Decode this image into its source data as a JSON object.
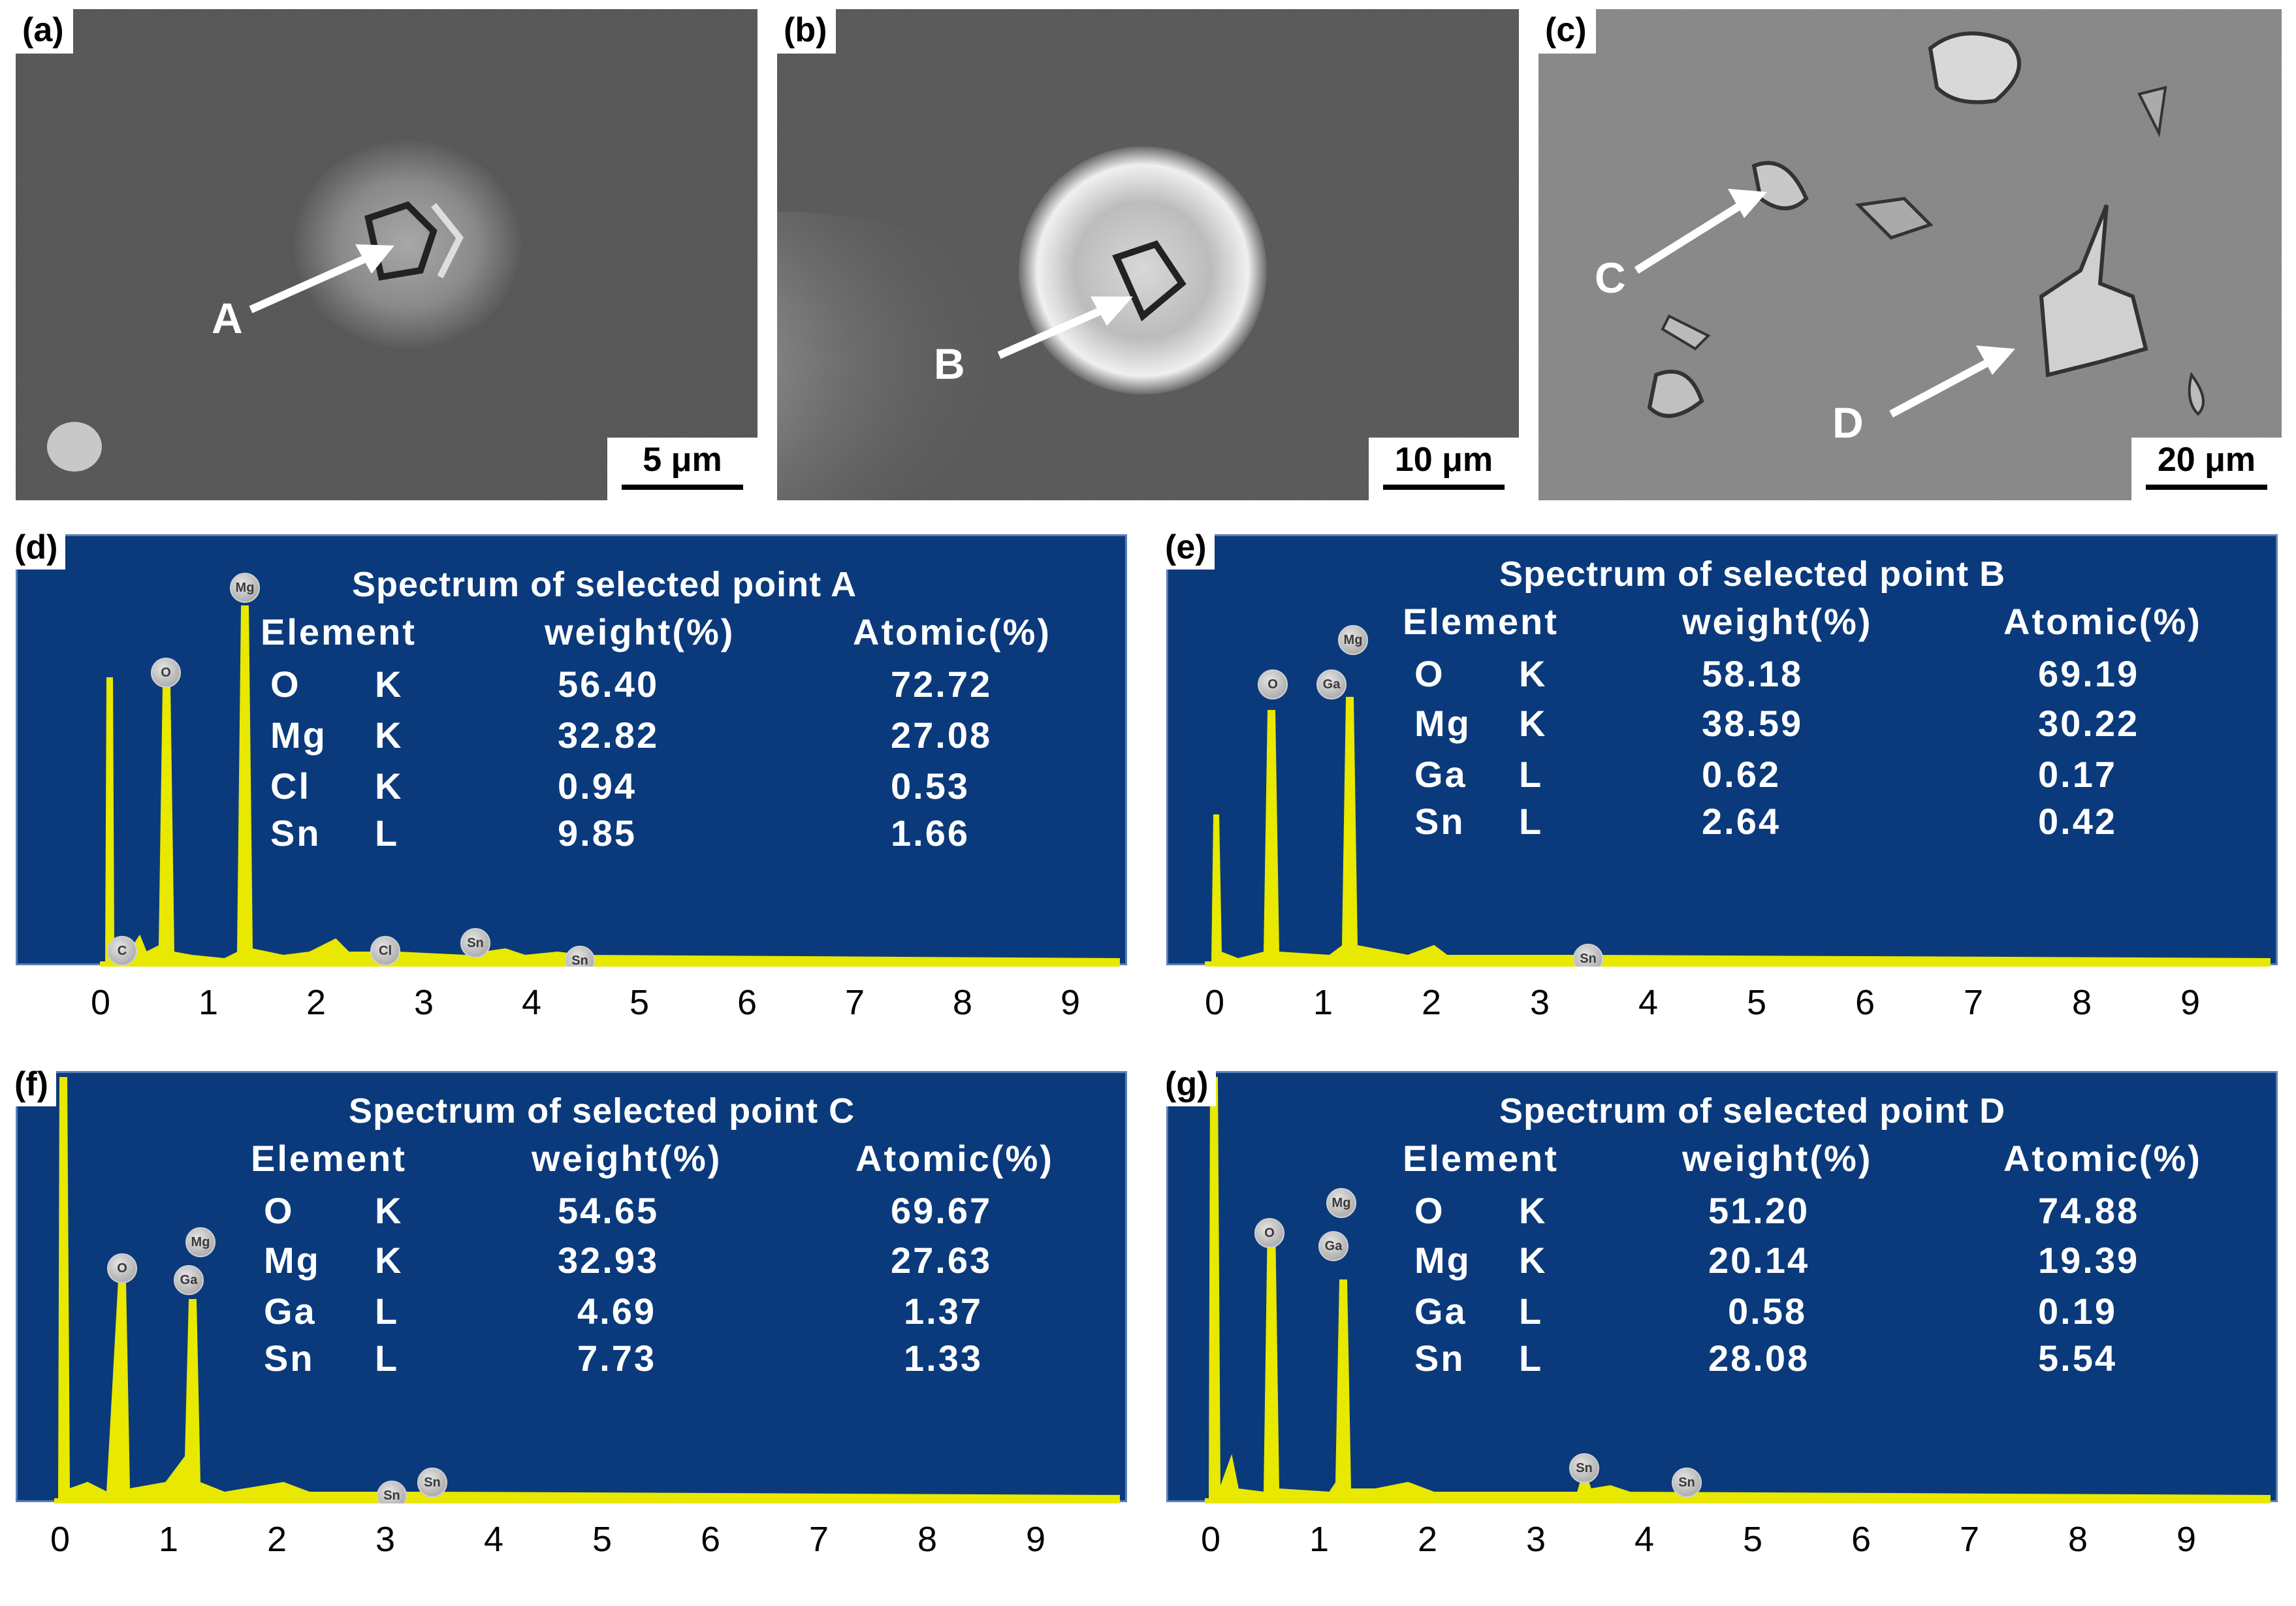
{
  "sem_panels": [
    {
      "label": "(a)",
      "point": "A",
      "scale": "5 μm"
    },
    {
      "label": "(b)",
      "point": "B",
      "scale": "10 μm"
    },
    {
      "label": "(c)",
      "points": [
        "C",
        "D"
      ],
      "scale": "20 μm"
    }
  ],
  "spectra": [
    {
      "label": "(d)",
      "title": "Spectrum of selected point A",
      "headers": [
        "Element",
        "weight(%)",
        "Atomic(%)"
      ],
      "rows": [
        {
          "element": "O",
          "line": "K",
          "weight": "56.40",
          "atomic": "72.72"
        },
        {
          "element": "Mg",
          "line": "K",
          "weight": "32.82",
          "atomic": "27.08"
        },
        {
          "element": "Cl",
          "line": "K",
          "weight": "0.94",
          "atomic": "0.53"
        },
        {
          "element": "Sn",
          "line": "L",
          "weight": "9.85",
          "atomic": "1.66"
        }
      ],
      "ticks": [
        "0",
        "1",
        "2",
        "3",
        "4",
        "5",
        "6",
        "7",
        "8",
        "9"
      ],
      "badges": [
        "C",
        "O",
        "Mg",
        "Cl",
        "Sn",
        "Sn"
      ]
    },
    {
      "label": "(e)",
      "title": "Spectrum of selected point B",
      "headers": [
        "Element",
        "weight(%)",
        "Atomic(%)"
      ],
      "rows": [
        {
          "element": "O",
          "line": "K",
          "weight": "58.18",
          "atomic": "69.19"
        },
        {
          "element": "Mg",
          "line": "K",
          "weight": "38.59",
          "atomic": "30.22"
        },
        {
          "element": "Ga",
          "line": "L",
          "weight": "0.62",
          "atomic": "0.17"
        },
        {
          "element": "Sn",
          "line": "L",
          "weight": "2.64",
          "atomic": "0.42"
        }
      ],
      "ticks": [
        "0",
        "1",
        "2",
        "3",
        "4",
        "5",
        "6",
        "7",
        "8",
        "9"
      ],
      "badges": [
        "O",
        "Ga",
        "Mg",
        "Sn"
      ]
    },
    {
      "label": "(f)",
      "title": "Spectrum of selected point C",
      "headers": [
        "Element",
        "weight(%)",
        "Atomic(%)"
      ],
      "rows": [
        {
          "element": "O",
          "line": "K",
          "weight": "54.65",
          "atomic": "69.67"
        },
        {
          "element": "Mg",
          "line": "K",
          "weight": "32.93",
          "atomic": "27.63"
        },
        {
          "element": "Ga",
          "line": "L",
          "weight": "4.69",
          "atomic": "1.37"
        },
        {
          "element": "Sn",
          "line": "L",
          "weight": "7.73",
          "atomic": "1.33"
        }
      ],
      "ticks": [
        "0",
        "1",
        "2",
        "3",
        "4",
        "5",
        "6",
        "7",
        "8",
        "9"
      ],
      "badges": [
        "O",
        "Ga",
        "Mg",
        "Sn",
        "Sn"
      ]
    },
    {
      "label": "(g)",
      "title": "Spectrum of selected point D",
      "headers": [
        "Element",
        "weight(%)",
        "Atomic(%)"
      ],
      "rows": [
        {
          "element": "O",
          "line": "K",
          "weight": "51.20",
          "atomic": "74.88"
        },
        {
          "element": "Mg",
          "line": "K",
          "weight": "20.14",
          "atomic": "19.39"
        },
        {
          "element": "Ga",
          "line": "L",
          "weight": "0.58",
          "atomic": "0.19"
        },
        {
          "element": "Sn",
          "line": "L",
          "weight": "28.08",
          "atomic": "5.54"
        }
      ],
      "ticks": [
        "0",
        "1",
        "2",
        "3",
        "4",
        "5",
        "6",
        "7",
        "8",
        "9"
      ],
      "badges": [
        "O",
        "Ga",
        "Mg",
        "Sn",
        "Sn"
      ]
    }
  ],
  "colors": {
    "spectrum_bg": "#0a3a7c",
    "peak": "#e8e800",
    "sem_bg": "#4a4a4a"
  }
}
